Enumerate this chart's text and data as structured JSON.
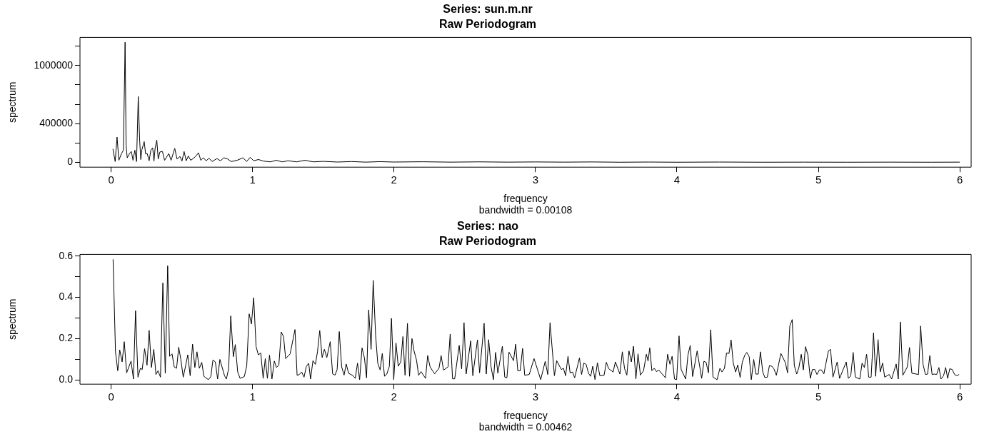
{
  "chart_data": [
    {
      "type": "line",
      "title": "Series: sun.m.nr",
      "subtitle": "Raw Periodogram",
      "xlabel": "frequency",
      "ylabel": "spectrum",
      "annotations": [
        "bandwidth = 0.00108"
      ],
      "color": "#000000",
      "x": [
        0.013,
        0.029,
        0.042,
        0.055,
        0.072,
        0.087,
        0.099,
        0.106,
        0.114,
        0.131,
        0.143,
        0.155,
        0.168,
        0.18,
        0.192,
        0.202,
        0.21,
        0.218,
        0.234,
        0.244,
        0.255,
        0.269,
        0.281,
        0.294,
        0.303,
        0.311,
        0.323,
        0.333,
        0.345,
        0.363,
        0.378,
        0.408,
        0.424,
        0.45,
        0.466,
        0.487,
        0.501,
        0.516,
        0.531,
        0.546,
        0.563,
        0.58,
        0.597,
        0.618,
        0.634,
        0.652,
        0.672,
        0.692,
        0.714,
        0.748,
        0.773,
        0.798,
        0.824,
        0.849,
        0.891,
        0.933,
        0.958,
        0.983,
        1.008,
        1.042,
        1.076,
        1.126,
        1.168,
        1.21,
        1.252,
        1.311,
        1.37,
        1.429,
        1.5,
        1.6,
        1.7,
        1.8,
        1.9,
        2.0,
        2.2,
        2.4,
        2.6,
        2.8,
        3.0,
        3.2,
        3.4,
        3.6,
        3.8,
        4.0,
        4.3,
        4.6,
        4.9,
        5.2,
        5.5,
        5.8,
        6.0
      ],
      "values": [
        138000,
        8000,
        261000,
        21000,
        86000,
        125000,
        1240000,
        178000,
        47000,
        91000,
        112000,
        21000,
        125000,
        8000,
        679000,
        222000,
        29000,
        133000,
        214000,
        86000,
        91000,
        16000,
        125000,
        151000,
        13000,
        144000,
        230000,
        34000,
        107000,
        112000,
        21000,
        91000,
        21000,
        144000,
        34000,
        60000,
        13000,
        112000,
        16000,
        65000,
        21000,
        39000,
        60000,
        99000,
        21000,
        47000,
        16000,
        42000,
        8000,
        39000,
        16000,
        47000,
        34000,
        8000,
        21000,
        47000,
        8000,
        52000,
        16000,
        29000,
        13000,
        5000,
        21000,
        5000,
        16000,
        5000,
        21000,
        5000,
        10000,
        3000,
        8000,
        2000,
        7000,
        3000,
        6000,
        2000,
        5000,
        2000,
        4000,
        2000,
        4000,
        1000,
        3000,
        1000,
        3000,
        1000,
        2000,
        1000,
        2000,
        1000,
        2000
      ],
      "xlim": [
        -0.22,
        6.08
      ],
      "ylim": [
        -50000,
        1290000
      ],
      "xticks": [
        0,
        1,
        2,
        3,
        4,
        5,
        6
      ],
      "yticks": [
        0,
        {
          "value": 200000,
          "label": null
        },
        400000,
        {
          "value": 600000,
          "label": null
        },
        {
          "value": 800000,
          "label": null
        },
        1000000,
        {
          "value": 1200000,
          "label": null
        }
      ]
    },
    {
      "type": "line",
      "title": "Series: nao",
      "subtitle": "Raw Periodogram",
      "xlabel": "frequency",
      "ylabel": "spectrum",
      "annotations": [
        "bandwidth = 0.00462"
      ],
      "color": "#000000",
      "x": [
        0.014,
        0.031,
        0.047,
        0.061,
        0.078,
        0.093,
        0.11,
        0.141,
        0.158,
        0.173,
        0.19,
        0.207,
        0.22,
        0.237,
        0.254,
        0.269,
        0.285,
        0.302,
        0.317,
        0.332,
        0.349,
        0.366,
        0.383,
        0.4,
        0.414,
        0.431,
        0.446,
        0.463,
        0.478,
        0.493,
        0.51,
        0.527,
        0.542,
        0.559,
        0.576,
        0.592,
        0.607,
        0.624,
        0.641,
        0.656,
        0.688,
        0.705,
        0.72,
        0.737,
        0.753,
        0.769,
        0.802,
        0.815,
        0.831,
        0.846,
        0.864,
        0.878,
        0.895,
        0.912,
        0.942,
        0.959,
        0.976,
        0.992,
        1.008,
        1.025,
        1.041,
        1.058,
        1.075,
        1.09,
        1.105,
        1.12,
        1.137,
        1.154,
        1.169,
        1.186,
        1.203,
        1.219,
        1.234,
        1.266,
        1.3,
        1.315,
        1.331,
        1.347,
        1.364,
        1.38,
        1.397,
        1.41,
        1.427,
        1.444,
        1.459,
        1.475,
        1.492,
        1.508,
        1.525,
        1.549,
        1.566,
        1.583,
        1.598,
        1.613,
        1.63,
        1.647,
        1.662,
        1.679,
        1.711,
        1.726,
        1.742,
        1.757,
        1.774,
        1.791,
        1.806,
        1.821,
        1.838,
        1.853,
        1.87,
        1.885,
        1.902,
        1.917,
        1.933,
        1.949,
        1.967,
        1.982,
        1.998,
        2.014,
        2.03,
        2.048,
        2.063,
        2.078,
        2.095,
        2.11,
        2.127,
        2.142,
        2.159,
        2.174,
        2.191,
        2.223,
        2.238,
        2.255,
        2.287,
        2.318,
        2.333,
        2.35,
        2.382,
        2.397,
        2.414,
        2.429,
        2.461,
        2.478,
        2.495,
        2.51,
        2.542,
        2.557,
        2.59,
        2.605,
        2.637,
        2.652,
        2.669,
        2.686,
        2.703,
        2.718,
        2.734,
        2.766,
        2.783,
        2.798,
        2.813,
        2.845,
        2.86,
        2.875,
        2.892,
        2.909,
        2.924,
        2.956,
        2.99,
        3.037,
        3.069,
        3.087,
        3.103,
        3.134,
        3.15,
        3.183,
        3.198,
        3.213,
        3.23,
        3.245,
        3.262,
        3.277,
        3.311,
        3.326,
        3.342,
        3.358,
        3.375,
        3.39,
        3.405,
        3.421,
        3.438,
        3.455,
        3.485,
        3.501,
        3.518,
        3.549,
        3.565,
        3.597,
        3.614,
        3.63,
        3.646,
        3.661,
        3.678,
        3.693,
        3.71,
        3.725,
        3.742,
        3.764,
        3.784,
        3.796,
        3.808,
        3.823,
        3.84,
        3.855,
        3.872,
        3.919,
        3.934,
        3.951,
        3.966,
        3.983,
        3.998,
        4.015,
        4.03,
        4.062,
        4.078,
        4.094,
        4.111,
        4.143,
        4.175,
        4.191,
        4.206,
        4.223,
        4.239,
        4.255,
        4.284,
        4.304,
        4.319,
        4.336,
        4.351,
        4.368,
        4.383,
        4.398,
        4.415,
        4.43,
        4.447,
        4.462,
        4.479,
        4.494,
        4.511,
        4.526,
        4.543,
        4.558,
        4.575,
        4.59,
        4.607,
        4.622,
        4.639,
        4.654,
        4.671,
        4.686,
        4.703,
        4.735,
        4.767,
        4.782,
        4.798,
        4.815,
        4.83,
        4.847,
        4.862,
        4.879,
        4.894,
        4.909,
        4.926,
        4.943,
        4.958,
        4.975,
        4.99,
        5.007,
        5.022,
        5.039,
        5.071,
        5.086,
        5.103,
        5.133,
        5.15,
        5.197,
        5.212,
        5.229,
        5.246,
        5.261,
        5.293,
        5.309,
        5.325,
        5.341,
        5.356,
        5.373,
        5.39,
        5.405,
        5.422,
        5.437,
        5.454,
        5.469,
        5.501,
        5.518,
        5.55,
        5.565,
        5.58,
        5.597,
        5.629,
        5.644,
        5.661,
        5.708,
        5.723,
        5.74,
        5.757,
        5.772,
        5.788,
        5.804,
        5.82,
        5.836,
        5.852,
        5.867,
        5.885,
        5.9,
        5.914,
        5.929,
        5.946,
        5.963,
        5.978,
        5.995
      ],
      "values": [
        0.584,
        0.136,
        0.044,
        0.145,
        0.087,
        0.185,
        0.034,
        0.091,
        0.004,
        0.335,
        0.013,
        0.056,
        0.05,
        0.151,
        0.071,
        0.24,
        0.06,
        0.148,
        0.026,
        0.044,
        0.013,
        0.47,
        0.032,
        0.553,
        0.114,
        0.126,
        0.063,
        0.056,
        0.158,
        0.099,
        0.013,
        0.069,
        0.121,
        0.02,
        0.173,
        0.06,
        0.136,
        0.056,
        0.085,
        0.017,
        0.001,
        0.016,
        0.096,
        0.087,
        0.004,
        0.099,
        0.02,
        0.004,
        0.054,
        0.31,
        0.112,
        0.171,
        0.038,
        0.007,
        0.016,
        0.069,
        0.32,
        0.271,
        0.398,
        0.161,
        0.121,
        0.13,
        0.007,
        0.103,
        0.007,
        0.12,
        0.004,
        0.091,
        0.06,
        0.072,
        0.232,
        0.21,
        0.103,
        0.126,
        0.244,
        0.022,
        0.026,
        0.038,
        0.013,
        0.065,
        0.08,
        0.004,
        0.093,
        0.075,
        0.136,
        0.239,
        0.108,
        0.148,
        0.108,
        0.185,
        0.029,
        0.023,
        0.05,
        0.234,
        0.063,
        0.023,
        0.077,
        0.032,
        0.02,
        0.007,
        0.081,
        0.001,
        0.155,
        0.106,
        0.01,
        0.339,
        0.148,
        0.482,
        0.216,
        0.081,
        0.048,
        0.128,
        0.017,
        0.028,
        0.065,
        0.298,
        0.001,
        0.179,
        0.066,
        0.087,
        0.21,
        0.022,
        0.274,
        0.017,
        0.2,
        0.139,
        0.096,
        0.022,
        0.04,
        0.007,
        0.118,
        0.063,
        0.029,
        0.056,
        0.118,
        0.047,
        0.063,
        0.222,
        0.005,
        0.005,
        0.167,
        0.053,
        0.277,
        0.028,
        0.189,
        0.02,
        0.194,
        0.034,
        0.274,
        0.028,
        0.195,
        0.063,
        0.001,
        0.133,
        0.032,
        0.163,
        0.013,
        0.01,
        0.134,
        0.093,
        0.173,
        0.044,
        0.044,
        0.152,
        0.022,
        0.026,
        0.103,
        0.001,
        0.09,
        0.026,
        0.277,
        0.02,
        0.093,
        0.05,
        0.056,
        0.02,
        0.114,
        0.034,
        0.038,
        0.01,
        0.106,
        0.026,
        0.081,
        0.075,
        0.032,
        0.017,
        0.066,
        0.001,
        0.083,
        0.02,
        0.022,
        0.085,
        0.054,
        0.038,
        0.087,
        0.028,
        0.136,
        0.054,
        0.023,
        0.14,
        0.087,
        0.163,
        0.004,
        0.126,
        0.023,
        0.044,
        0.124,
        0.091,
        0.155,
        0.044,
        0.056,
        0.04,
        0.047,
        0.01,
        0.124,
        0.075,
        0.114,
        0.004,
        0.001,
        0.213,
        0.05,
        0.004,
        0.12,
        0.167,
        0.016,
        0.14,
        0.007,
        0.09,
        0.085,
        0.034,
        0.243,
        0.013,
        0.001,
        0.056,
        0.038,
        0.056,
        0.13,
        0.128,
        0.194,
        0.083,
        0.038,
        0.072,
        0.011,
        0.085,
        0.118,
        0.133,
        0.112,
        0.001,
        0.099,
        0.028,
        0.028,
        0.136,
        0.038,
        0.011,
        0.013,
        0.069,
        0.066,
        0.053,
        0.022,
        0.128,
        0.083,
        0.034,
        0.261,
        0.292,
        0.069,
        0.028,
        0.059,
        0.124,
        0.048,
        0.161,
        0.121,
        0.007,
        0.05,
        0.05,
        0.026,
        0.048,
        0.048,
        0.029,
        0.14,
        0.148,
        0.013,
        0.087,
        0.007,
        0.087,
        0.007,
        0.02,
        0.133,
        0.013,
        0.004,
        0.081,
        0.06,
        0.124,
        0.013,
        0.013,
        0.228,
        0.017,
        0.195,
        0.038,
        0.081,
        0.013,
        0.026,
        0.004,
        0.077,
        0.004,
        0.28,
        0.022,
        0.063,
        0.157,
        0.032,
        0.026,
        0.261,
        0.075,
        0.026,
        0.028,
        0.118,
        0.026,
        0.028,
        0.026,
        0.06,
        0.004,
        0.02,
        0.06,
        0.007,
        0.054,
        0.05,
        0.026,
        0.02,
        0.026
      ],
      "xlim": [
        -0.22,
        6.08
      ],
      "ylim": [
        -0.021,
        0.608
      ],
      "xticks": [
        0,
        1,
        2,
        3,
        4,
        5,
        6
      ],
      "yticks": [
        {
          "value": 0,
          "label": "0.0"
        },
        {
          "value": 0.1,
          "label": null
        },
        0.2,
        {
          "value": 0.3,
          "label": null
        },
        0.4,
        {
          "value": 0.5,
          "label": null
        },
        0.6
      ]
    }
  ]
}
